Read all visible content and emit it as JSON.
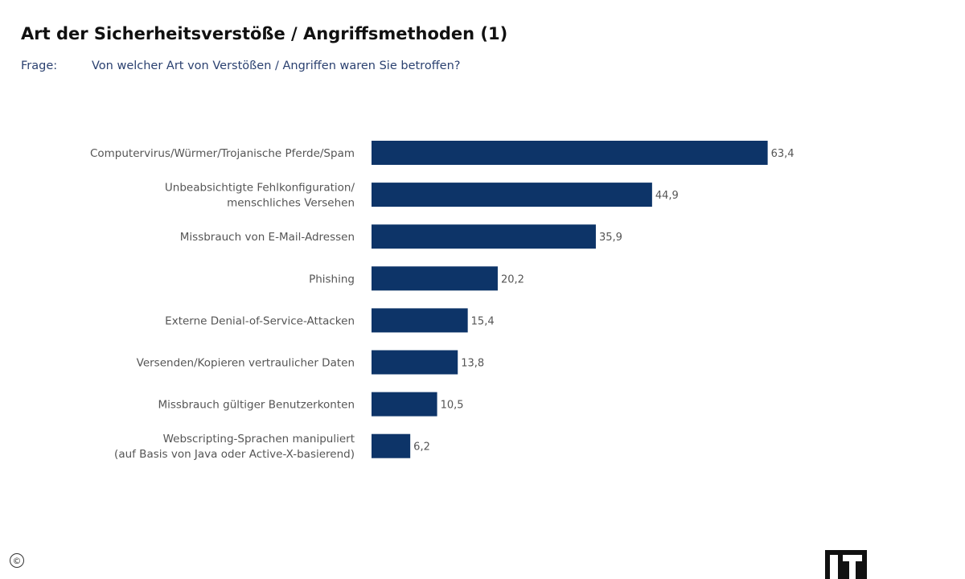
{
  "title": "Art der Sicherheitsverstöße / Angriffsmethoden (1)",
  "question": {
    "label": "Frage:",
    "text": "Von welcher Art von Verstößen / Angriffen waren Sie betroffen?"
  },
  "copyright_symbol": "©",
  "colors": {
    "bar": "#0d3468",
    "label_text": "#555555",
    "value_text": "#555555",
    "question_text": "#2b4170"
  },
  "chart_data": {
    "type": "bar",
    "orientation": "horizontal",
    "categories": [
      "Computervirus/Würmer/Trojanische Pferde/Spam",
      "Unbeabsichtigte Fehlkonfiguration/\nmenschliches Versehen",
      "Missbrauch von E-Mail-Adressen",
      "Phishing",
      "Externe Denial-of-Service-Attacken",
      "Versenden/Kopieren vertraulicher Daten",
      "Missbrauch gültiger Benutzerkonten",
      "Webscripting-Sprachen manipuliert\n(auf Basis von Java oder Active-X-basierend)"
    ],
    "values": [
      63.4,
      44.9,
      35.9,
      20.2,
      15.4,
      13.8,
      10.5,
      6.2
    ],
    "value_labels": [
      "63,4",
      "44,9",
      "35,9",
      "20,2",
      "15,4",
      "13,8",
      "10,5",
      "6,2"
    ],
    "xlim": [
      0,
      100
    ],
    "grid": false,
    "title": "Art der Sicherheitsverstöße / Angriffsmethoden (1)"
  }
}
